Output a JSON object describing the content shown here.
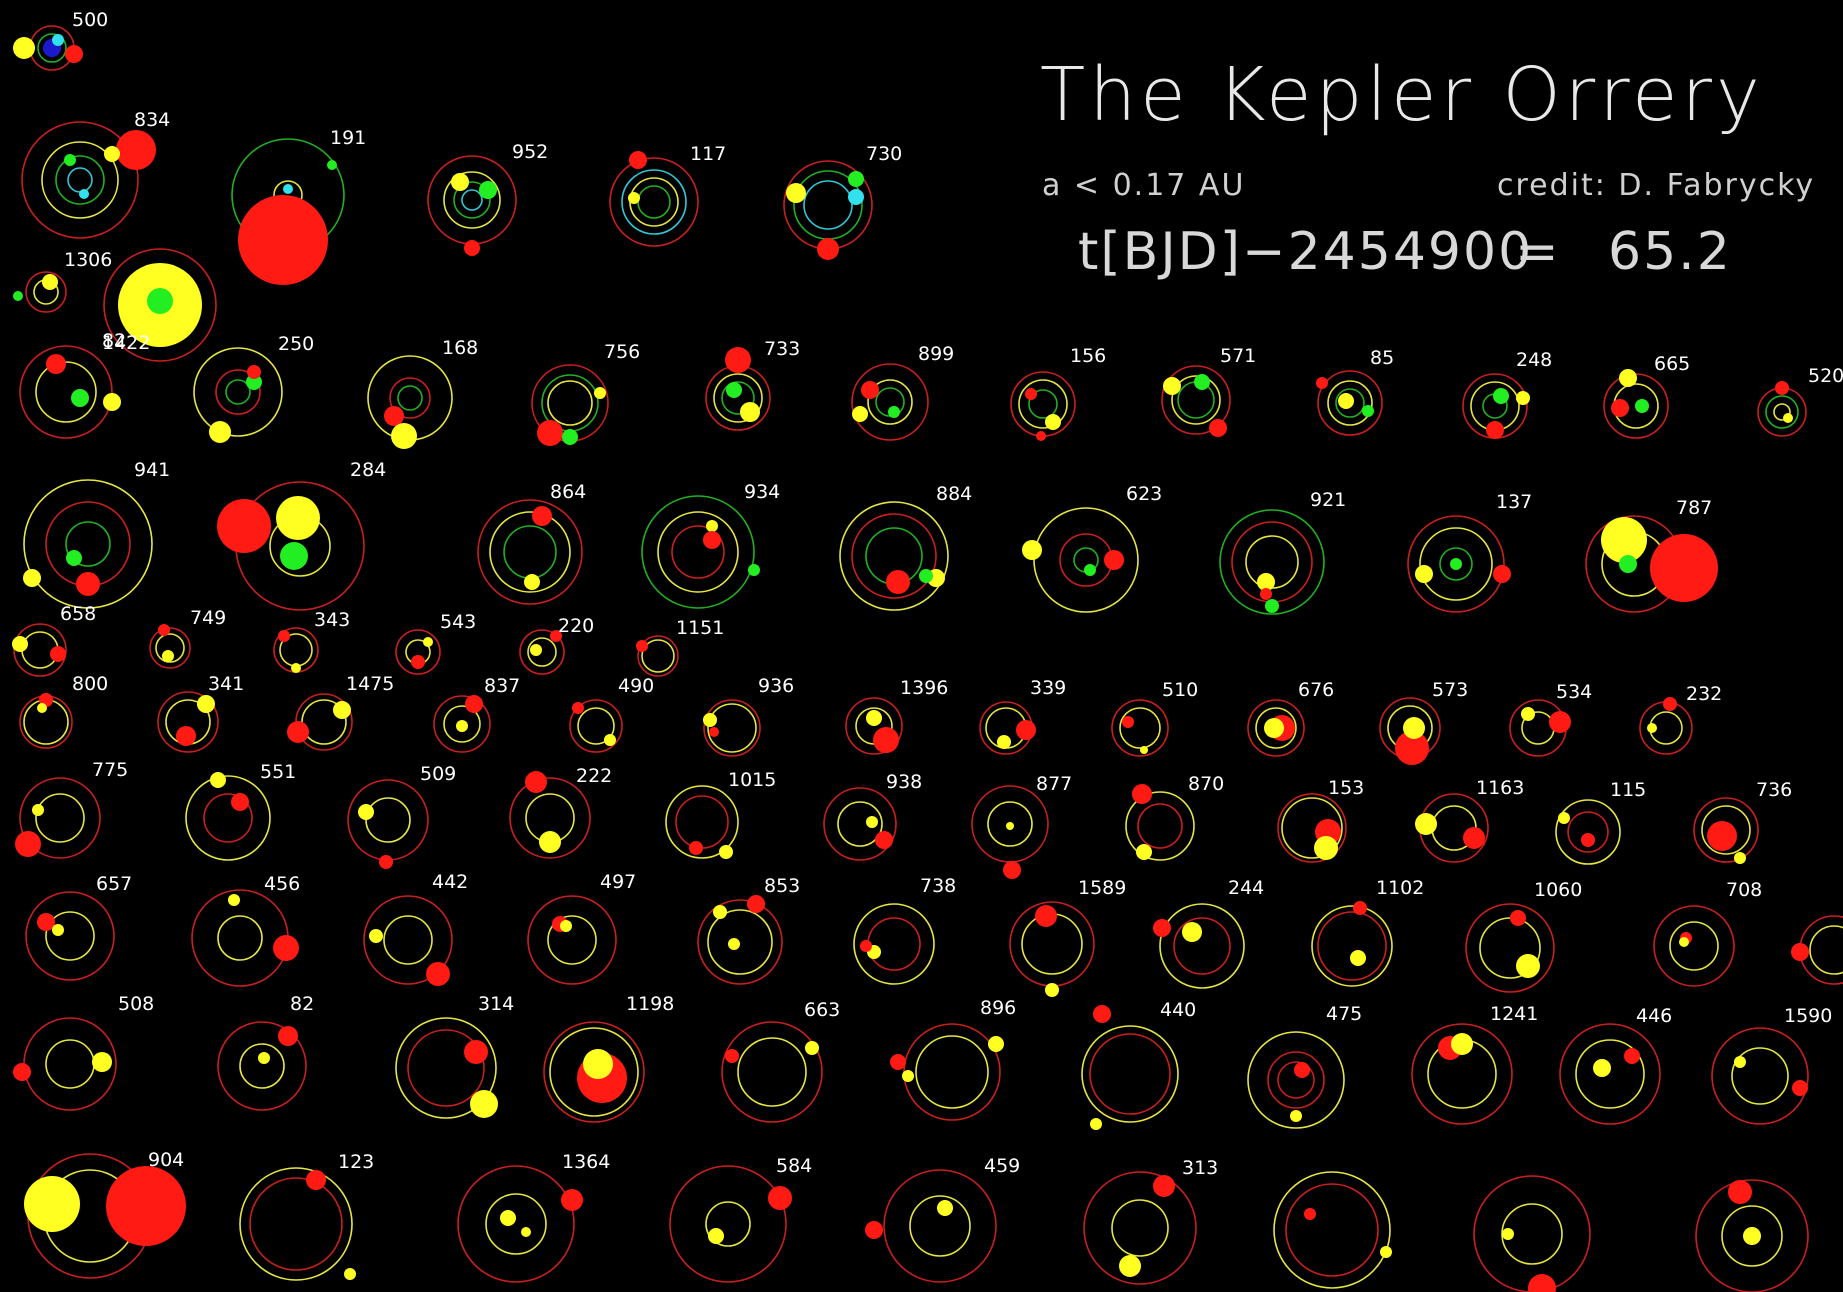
{
  "header": {
    "title": "The Kepler Orrery",
    "semi_major_limit": "a < 0.17 AU",
    "credit": "credit: D. Fabrycky",
    "time_label": "t[BJD]−2454900",
    "time_equals": "=",
    "time_value": "65.2"
  },
  "colors": {
    "background": "#000000",
    "orbit_red": "#c8201e",
    "orbit_yellow": "#e6e642",
    "orbit_green": "#22b022",
    "orbit_cyan": "#33c7d6",
    "planet_red": "#ff1a14",
    "planet_yellow": "#ffff22",
    "planet_green": "#22ee22",
    "planet_cyan": "#33e0ee",
    "star_dark": "#1a1acc"
  },
  "systems": [
    {
      "id": "500"
    },
    {
      "id": "834"
    },
    {
      "id": "191"
    },
    {
      "id": "952"
    },
    {
      "id": "117"
    },
    {
      "id": "730"
    },
    {
      "id": "1306"
    },
    {
      "id": "82"
    },
    {
      "id": "1422"
    },
    {
      "id": "250"
    },
    {
      "id": "168"
    },
    {
      "id": "756"
    },
    {
      "id": "733"
    },
    {
      "id": "899"
    },
    {
      "id": "156"
    },
    {
      "id": "571"
    },
    {
      "id": "85"
    },
    {
      "id": "248"
    },
    {
      "id": "665"
    },
    {
      "id": "520"
    },
    {
      "id": "941"
    },
    {
      "id": "284"
    },
    {
      "id": "864"
    },
    {
      "id": "934"
    },
    {
      "id": "884"
    },
    {
      "id": "623"
    },
    {
      "id": "921"
    },
    {
      "id": "137"
    },
    {
      "id": "787"
    },
    {
      "id": "658"
    },
    {
      "id": "749"
    },
    {
      "id": "343"
    },
    {
      "id": "543"
    },
    {
      "id": "220"
    },
    {
      "id": "1151"
    },
    {
      "id": "800"
    },
    {
      "id": "341"
    },
    {
      "id": "1475"
    },
    {
      "id": "837"
    },
    {
      "id": "490"
    },
    {
      "id": "936"
    },
    {
      "id": "1396"
    },
    {
      "id": "339"
    },
    {
      "id": "510"
    },
    {
      "id": "676"
    },
    {
      "id": "573"
    },
    {
      "id": "534"
    },
    {
      "id": "232"
    },
    {
      "id": "775"
    },
    {
      "id": "551"
    },
    {
      "id": "509"
    },
    {
      "id": "222"
    },
    {
      "id": "1015"
    },
    {
      "id": "938"
    },
    {
      "id": "877"
    },
    {
      "id": "870"
    },
    {
      "id": "153"
    },
    {
      "id": "1163"
    },
    {
      "id": "115"
    },
    {
      "id": "736"
    },
    {
      "id": "657"
    },
    {
      "id": "456"
    },
    {
      "id": "442"
    },
    {
      "id": "497"
    },
    {
      "id": "853"
    },
    {
      "id": "738"
    },
    {
      "id": "1589"
    },
    {
      "id": "244"
    },
    {
      "id": "1102"
    },
    {
      "id": "1060"
    },
    {
      "id": "708"
    },
    {
      "id": "597"
    },
    {
      "id": "508"
    },
    {
      "id": "82"
    },
    {
      "id": "314"
    },
    {
      "id": "1198"
    },
    {
      "id": "663"
    },
    {
      "id": "896"
    },
    {
      "id": "440"
    },
    {
      "id": "475"
    },
    {
      "id": "1241"
    },
    {
      "id": "446"
    },
    {
      "id": "1590"
    },
    {
      "id": "904"
    },
    {
      "id": "123"
    },
    {
      "id": "1364"
    },
    {
      "id": "584"
    },
    {
      "id": "459"
    },
    {
      "id": "313"
    }
  ]
}
